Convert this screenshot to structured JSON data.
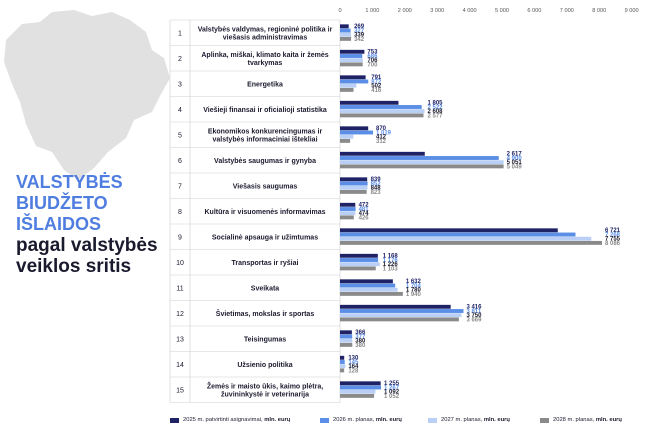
{
  "title": {
    "line1": "VALSTYBĖS",
    "line2": "BIUDŽETO",
    "line3": "IŠLAIDOS",
    "line4": "pagal valstybės",
    "line5": "veiklos sritis"
  },
  "colors": {
    "s2025": "#1f2366",
    "s2026": "#5b8ee6",
    "s2027": "#b9cff5",
    "s2028": "#8a8a8a",
    "title_blue": "#4f7ee0",
    "map": "#e1e1e1"
  },
  "legend": [
    {
      "prefix": "2025 m. patvirtinti asignavimai, ",
      "unit": "mln. eurų"
    },
    {
      "prefix": "2026 m. planas, ",
      "unit": "mln. eurų"
    },
    {
      "prefix": "2027 m. planas, ",
      "unit": "mln. eurų"
    },
    {
      "prefix": "2028 m. planas, ",
      "unit": "mln. eurų"
    }
  ],
  "chart_data": {
    "type": "bar",
    "orientation": "horizontal",
    "xlim": [
      0,
      9000
    ],
    "ticks": [
      "0",
      "1 000",
      "2 000",
      "3 000",
      "4 000",
      "5 000",
      "6 000",
      "7 000",
      "8 000",
      "9 000"
    ],
    "grid": false,
    "legend_position": "bottom",
    "categories": [
      {
        "num": "1",
        "lines": [
          "Valstybės valdymas, regioninė politika ir",
          "viešasis administravimas"
        ]
      },
      {
        "num": "2",
        "lines": [
          "Aplinka, miškai, klimato kaita ir žemės",
          "tvarkymas"
        ]
      },
      {
        "num": "3",
        "lines": [
          "Energetika"
        ]
      },
      {
        "num": "4",
        "lines": [
          "Viešieji finansai ir oficialioji statistika"
        ]
      },
      {
        "num": "5",
        "lines": [
          "Ekonomikos konkurencingumas ir",
          "valstybės informaciniai ištekliai"
        ]
      },
      {
        "num": "6",
        "lines": [
          "Valstybės saugumas ir gynyba"
        ]
      },
      {
        "num": "7",
        "lines": [
          "Viešasis saugumas"
        ]
      },
      {
        "num": "8",
        "lines": [
          "Kultūra ir visuomenės informavimas"
        ]
      },
      {
        "num": "9",
        "lines": [
          "Socialinė apsauga ir užimtumas"
        ]
      },
      {
        "num": "10",
        "lines": [
          "Transportas ir ryšiai"
        ]
      },
      {
        "num": "11",
        "lines": [
          "Sveikata"
        ]
      },
      {
        "num": "12",
        "lines": [
          "Švietimas, mokslas ir sportas"
        ]
      },
      {
        "num": "13",
        "lines": [
          "Teisingumas"
        ]
      },
      {
        "num": "14",
        "lines": [
          "Užsienio politika"
        ]
      },
      {
        "num": "15",
        "lines": [
          "Žemės ir maisto ūkis, kaimo plėtra,",
          "žuvininkystė ir veterinarija"
        ]
      }
    ],
    "series": [
      {
        "name": "2025 m. patvirtinti asignavimai, mln. eurų",
        "values": [
          269,
          753,
          791,
          1805,
          870,
          2617,
          839,
          472,
          6721,
          1168,
          1632,
          3416,
          366,
          130,
          1255
        ],
        "labels": [
          "269",
          "753",
          "791",
          "1 805",
          "870",
          "2 617",
          "839",
          "472",
          "6 721",
          "1 168",
          "1 632",
          "3 416",
          "366",
          "130",
          "1 255"
        ]
      },
      {
        "name": "2026 m. planas, mln. eurų",
        "values": [
          327,
          686,
          872,
          2522,
          1019,
          4900,
          852,
          481,
          7268,
          1176,
          1704,
          3811,
          377,
          145,
          1267
        ],
        "labels": [
          "327",
          "686",
          "872",
          "2 522",
          "1 019",
          "4 900",
          "852",
          "481",
          "7 268",
          "1 176",
          "1 704",
          "3 811",
          "377",
          "145",
          "1 267"
        ]
      },
      {
        "name": "2027 m. planas, mln. eurų",
        "values": [
          339,
          706,
          502,
          2608,
          412,
          5051,
          848,
          474,
          7755,
          1226,
          1780,
          3750,
          380,
          164,
          1092
        ],
        "labels": [
          "339",
          "706",
          "502",
          "2 608",
          "412",
          "5 051",
          "848",
          "474",
          "7 755",
          "1 226",
          "1 780",
          "3 750",
          "380",
          "164",
          "1 092"
        ]
      },
      {
        "name": "2028 m. planas, mln. eurų",
        "values": [
          342,
          700,
          416,
          2577,
          312,
          5049,
          823,
          426,
          8086,
          1103,
          1940,
          3669,
          380,
          128,
          1052
        ],
        "labels": [
          "342",
          "700",
          "416",
          "2 577",
          "312",
          "5 049",
          "823",
          "426",
          "8 086",
          "1 103",
          "1 940",
          "3 669",
          "380",
          "128",
          "1 052"
        ]
      }
    ]
  }
}
